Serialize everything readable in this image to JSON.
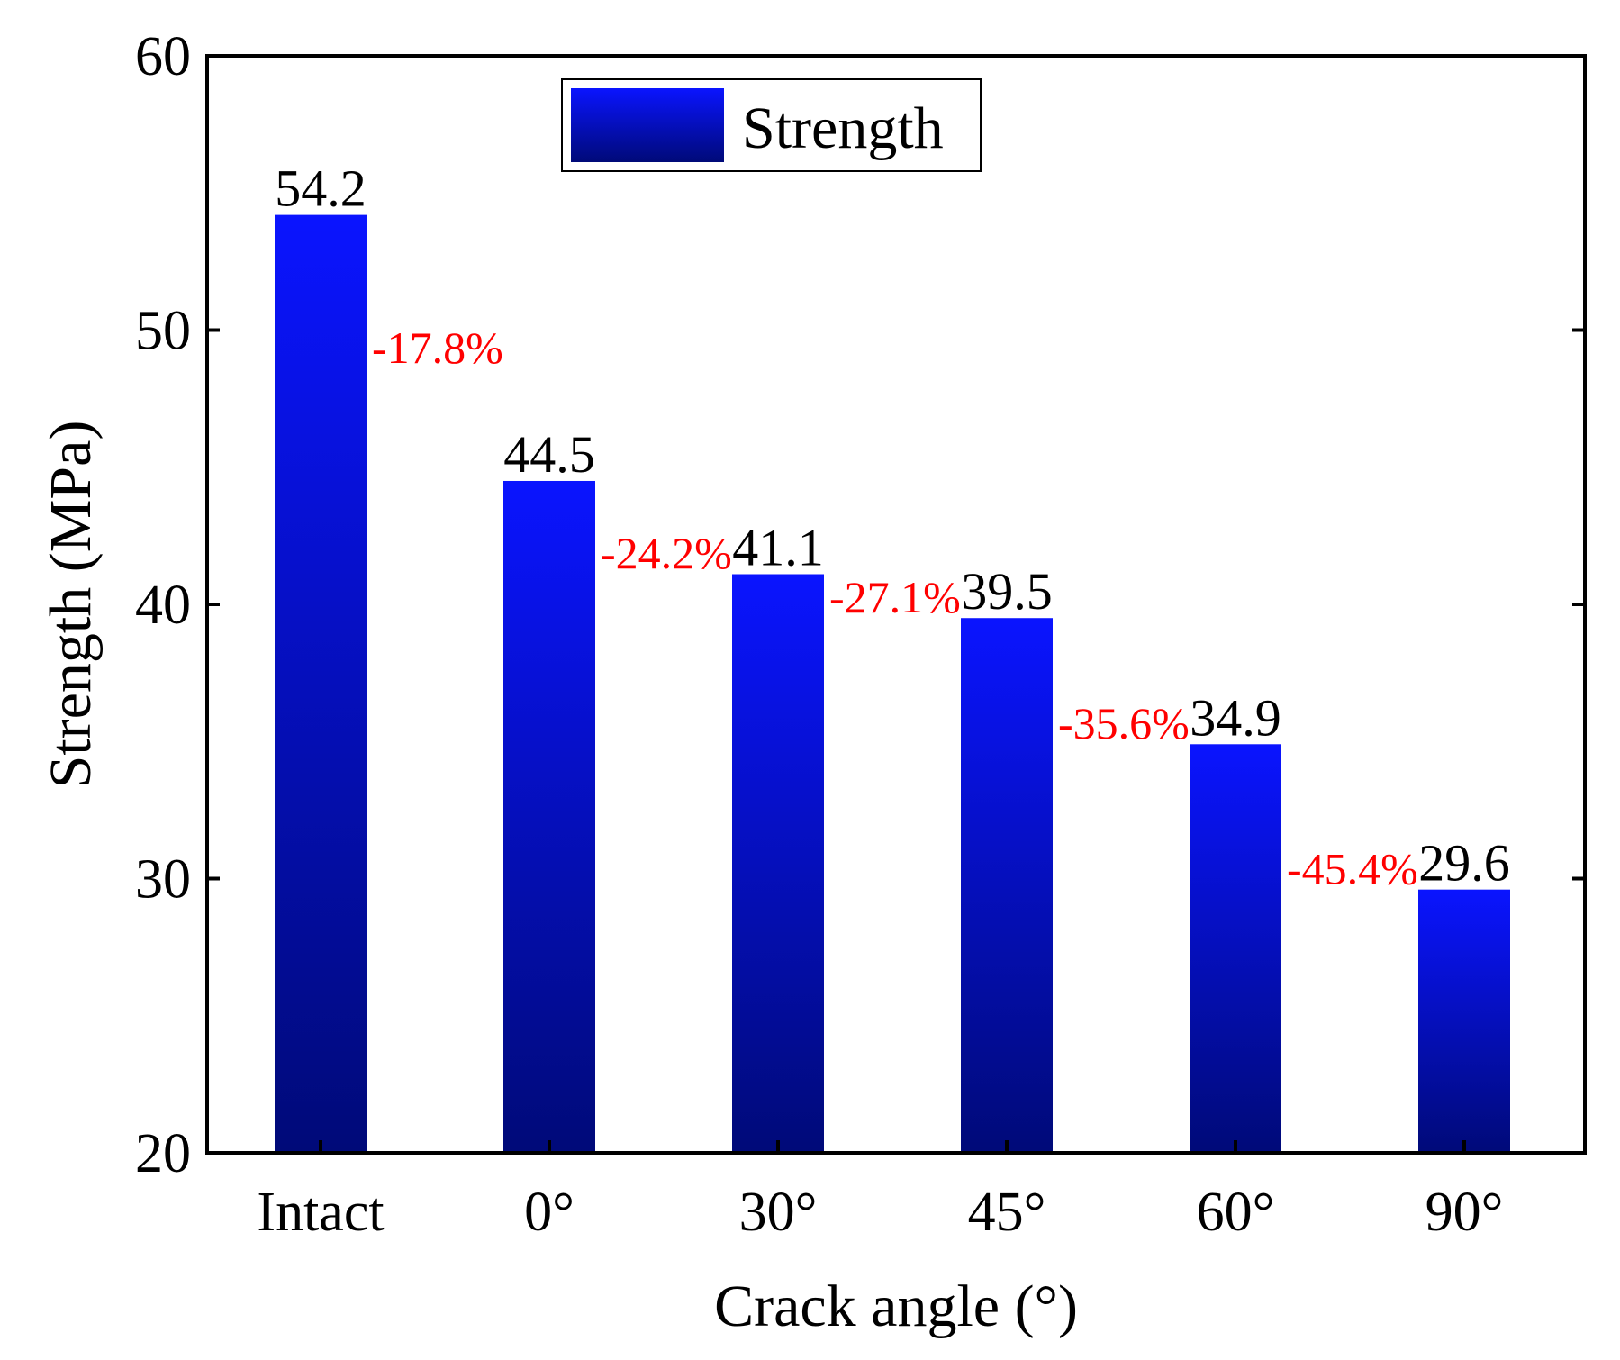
{
  "chart_data": {
    "type": "bar",
    "title": "",
    "xlabel": "Crack angle (°)",
    "ylabel": "Strength (MPa)",
    "categories": [
      "Intact",
      "0°",
      "30°",
      "45°",
      "60°",
      "90°"
    ],
    "series": [
      {
        "name": "Strength",
        "values": [
          54.2,
          44.5,
          41.1,
          39.5,
          34.9,
          29.6
        ],
        "value_labels": [
          "54.2",
          "44.5",
          "41.1",
          "39.5",
          "34.9",
          "29.6"
        ]
      }
    ],
    "annotations": [
      "-17.8%",
      "-24.2%",
      "-27.1%",
      "-35.6%",
      "-45.4%"
    ],
    "ylim": [
      20,
      60
    ],
    "yticks": [
      "20",
      "30",
      "40",
      "50",
      "60"
    ],
    "legend": {
      "position": "top-center",
      "entries": [
        "Strength"
      ]
    },
    "grid": false,
    "colors": {
      "bar_top": "#0a14ff",
      "bar_bottom": "#000a78",
      "annotation": "#ff0000",
      "axis": "#000000"
    }
  }
}
